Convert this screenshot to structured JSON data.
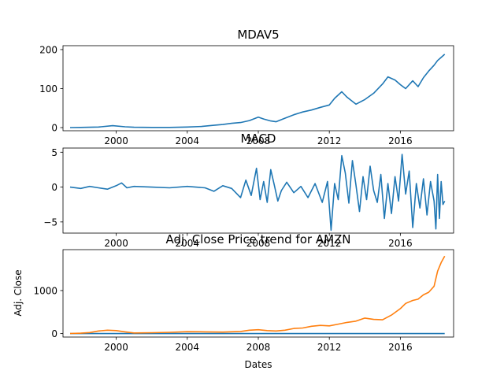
{
  "chart_data": [
    {
      "type": "line",
      "title": "MDAV5",
      "xlabel": "",
      "ylabel": "",
      "x_ticks": [
        "2000",
        "2004",
        "2008",
        "2012",
        "2016"
      ],
      "y_ticks": [
        0,
        100,
        200
      ],
      "xlim": [
        1997.0,
        2019.0
      ],
      "ylim": [
        -8,
        210
      ],
      "grid": false,
      "series": [
        {
          "color": "#1f77b4",
          "x": [
            1997.4,
            1998.0,
            1999.0,
            1999.8,
            2000.5,
            2001.0,
            2002.0,
            2003.0,
            2004.0,
            2004.8,
            2005.5,
            2006.0,
            2006.5,
            2007.0,
            2007.5,
            2008.0,
            2008.3,
            2008.7,
            2009.0,
            2009.5,
            2010.0,
            2010.5,
            2011.0,
            2011.5,
            2012.0,
            2012.3,
            2012.7,
            2013.0,
            2013.5,
            2014.0,
            2014.5,
            2015.0,
            2015.3,
            2015.7,
            2016.0,
            2016.3,
            2016.7,
            2017.0,
            2017.3,
            2017.6,
            2017.9,
            2018.1,
            2018.3,
            2018.5
          ],
          "y": [
            0,
            0.5,
            1.5,
            5,
            2,
            0.8,
            0.5,
            0.5,
            1.5,
            3,
            6,
            8,
            11,
            13,
            18,
            27,
            22,
            17,
            15,
            24,
            33,
            40,
            45,
            52,
            58,
            75,
            92,
            78,
            60,
            72,
            88,
            112,
            130,
            122,
            110,
            100,
            120,
            105,
            128,
            145,
            160,
            172,
            180,
            188
          ]
        }
      ]
    },
    {
      "type": "line",
      "title": "MACD",
      "xlabel": "",
      "ylabel": "",
      "x_ticks": [
        "2000",
        "2004",
        "2008",
        "2012",
        "2016"
      ],
      "y_ticks": [
        -5,
        0,
        5
      ],
      "xlim": [
        1997.0,
        2019.0
      ],
      "ylim": [
        -6.6,
        5.6
      ],
      "grid": false,
      "series": [
        {
          "color": "#1f77b4",
          "x": [
            1997.4,
            1998.0,
            1998.5,
            1999.0,
            1999.5,
            2000.0,
            2000.3,
            2000.6,
            2001.0,
            2002.0,
            2003.0,
            2004.0,
            2005.0,
            2005.5,
            2006.0,
            2006.5,
            2007.0,
            2007.3,
            2007.6,
            2007.9,
            2008.1,
            2008.3,
            2008.5,
            2008.7,
            2008.9,
            2009.1,
            2009.3,
            2009.6,
            2010.0,
            2010.4,
            2010.8,
            2011.2,
            2011.6,
            2011.9,
            2012.1,
            2012.3,
            2012.5,
            2012.7,
            2012.9,
            2013.1,
            2013.3,
            2013.5,
            2013.7,
            2013.9,
            2014.1,
            2014.3,
            2014.5,
            2014.7,
            2014.9,
            2015.1,
            2015.3,
            2015.5,
            2015.7,
            2015.9,
            2016.1,
            2016.3,
            2016.5,
            2016.7,
            2016.9,
            2017.1,
            2017.3,
            2017.5,
            2017.7,
            2017.9,
            2018.0,
            2018.1,
            2018.2,
            2018.3,
            2018.4,
            2018.5
          ],
          "y": [
            0,
            -0.2,
            0.1,
            -0.1,
            -0.3,
            0.2,
            0.6,
            -0.1,
            0.1,
            0.0,
            -0.1,
            0.1,
            -0.1,
            -0.6,
            0.2,
            -0.2,
            -1.5,
            1.0,
            -1.2,
            2.7,
            -1.8,
            0.8,
            -2.2,
            2.5,
            0.3,
            -2.0,
            -0.5,
            0.7,
            -0.8,
            0.1,
            -1.5,
            0.5,
            -2.2,
            0.8,
            -6.2,
            0.5,
            -1.8,
            4.5,
            2.0,
            -2.3,
            3.8,
            0.3,
            -3.5,
            1.5,
            -1.8,
            3.0,
            -0.5,
            -2.2,
            1.8,
            -4.5,
            0.5,
            -3.8,
            1.5,
            -2.0,
            4.7,
            -1.0,
            2.3,
            -5.8,
            0.5,
            -3.0,
            1.2,
            -4.0,
            0.8,
            -2.0,
            -6.0,
            1.8,
            -4.5,
            0.8,
            -2.5,
            -2.0
          ]
        }
      ]
    },
    {
      "type": "line",
      "title": "Adj. Close Price trend for AMZN",
      "xlabel": "Dates",
      "ylabel": "Adj. Close",
      "x_ticks": [
        "2000",
        "2004",
        "2008",
        "2012",
        "2016"
      ],
      "y_ticks": [
        0,
        1000
      ],
      "xlim": [
        1997.0,
        2019.0
      ],
      "ylim": [
        -80,
        1950
      ],
      "grid": false,
      "series": [
        {
          "color": "#1f77b4",
          "x": [
            1997.4,
            2000.0,
            2004.0,
            2008.0,
            2012.0,
            2016.0,
            2018.5
          ],
          "y": [
            0,
            0.5,
            0.3,
            0.5,
            0.8,
            1.0,
            0.5
          ]
        },
        {
          "color": "#ff7f0e",
          "x": [
            1997.4,
            1998.0,
            1998.5,
            1999.0,
            1999.5,
            2000.0,
            2000.5,
            2001.0,
            2002.0,
            2003.0,
            2004.0,
            2005.0,
            2006.0,
            2007.0,
            2007.5,
            2008.0,
            2008.5,
            2009.0,
            2009.5,
            2010.0,
            2010.5,
            2011.0,
            2011.5,
            2012.0,
            2012.5,
            2013.0,
            2013.5,
            2014.0,
            2014.5,
            2015.0,
            2015.5,
            2016.0,
            2016.3,
            2016.7,
            2017.0,
            2017.3,
            2017.6,
            2017.9,
            2018.1,
            2018.3,
            2018.5
          ],
          "y": [
            2,
            10,
            25,
            60,
            80,
            70,
            40,
            15,
            20,
            30,
            45,
            40,
            35,
            50,
            80,
            90,
            70,
            60,
            80,
            120,
            130,
            170,
            190,
            180,
            220,
            260,
            290,
            360,
            330,
            320,
            430,
            580,
            700,
            770,
            800,
            900,
            960,
            1100,
            1450,
            1650,
            1800
          ]
        }
      ]
    }
  ]
}
